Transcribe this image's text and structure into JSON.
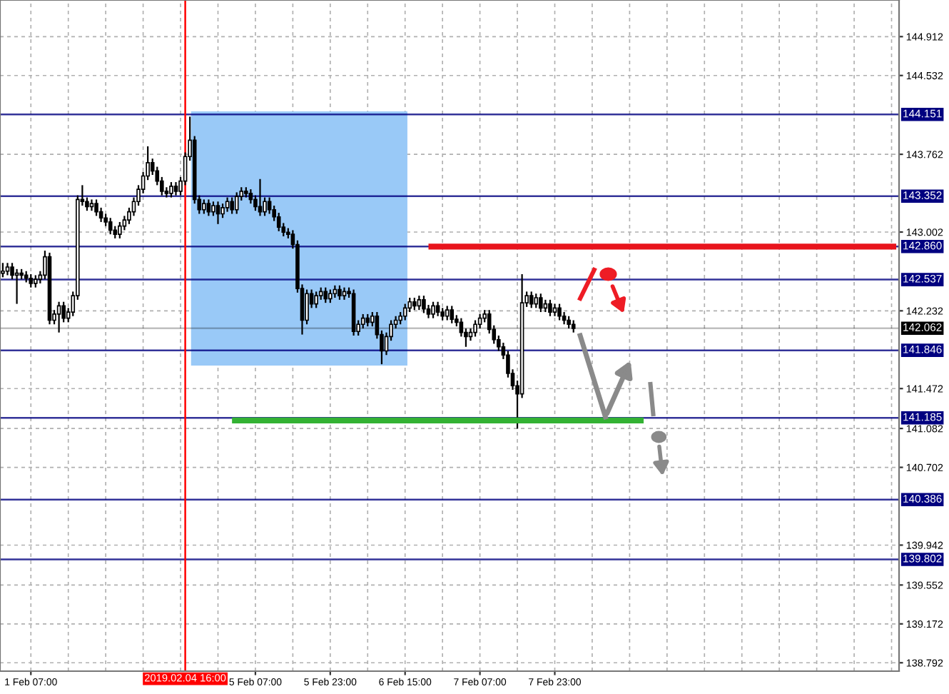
{
  "chart_data": {
    "type": "candlestick",
    "categories": [
      null,
      null,
      null,
      null,
      null,
      null,
      "1 Feb 07:00",
      null,
      null,
      null,
      null,
      null,
      null,
      null,
      null,
      null,
      null,
      null,
      null,
      null,
      null,
      null,
      null,
      null,
      null,
      null,
      null,
      null,
      null,
      null,
      null,
      null,
      null,
      null,
      null,
      null,
      null,
      null,
      null,
      "2019.02.04 16:00",
      null,
      null,
      null,
      null,
      null,
      null,
      null,
      null,
      null,
      null,
      null,
      null,
      null,
      null,
      "5 Feb 07:00",
      null,
      null,
      null,
      null,
      null,
      null,
      null,
      null,
      null,
      null,
      null,
      null,
      null,
      null,
      null,
      "5 Feb 23:00",
      null,
      null,
      null,
      null,
      null,
      null,
      null,
      null,
      null,
      null,
      null,
      null,
      null,
      null,
      null,
      "6 Feb 15:00",
      null,
      null,
      null,
      null,
      null,
      null,
      null,
      null,
      null,
      null,
      null,
      null,
      null,
      null,
      null,
      "7 Feb 07:00",
      null,
      null,
      null,
      null,
      null,
      null,
      null,
      null,
      null,
      null,
      null,
      null,
      null,
      null,
      null,
      "7 Feb 23:00",
      null,
      null,
      null,
      null,
      null,
      null,
      null,
      null,
      null,
      null,
      null,
      null,
      null,
      null,
      null,
      null,
      null,
      null,
      null,
      null,
      null,
      null,
      null,
      null,
      null,
      null,
      null,
      null,
      null,
      null,
      null,
      null,
      null,
      null,
      null,
      null,
      null,
      null,
      null,
      null,
      null,
      null,
      null,
      null,
      null,
      null,
      null,
      null,
      null,
      null,
      null,
      null,
      null,
      null,
      null,
      null,
      null,
      null,
      null,
      null,
      null,
      null,
      null,
      null,
      null,
      null,
      null,
      null,
      null,
      null,
      null,
      null,
      null
    ],
    "ohlc": [
      [
        142.6,
        142.7,
        142.56,
        142.62
      ],
      [
        142.62,
        142.7,
        142.58,
        142.66
      ],
      [
        142.66,
        142.7,
        142.54,
        142.58
      ],
      [
        142.58,
        142.64,
        142.3,
        142.6
      ],
      [
        142.6,
        142.64,
        142.54,
        142.58
      ],
      [
        142.58,
        142.62,
        142.51,
        142.55
      ],
      [
        142.55,
        142.59,
        142.46,
        142.5
      ],
      [
        142.5,
        142.58,
        142.46,
        142.54
      ],
      [
        142.54,
        142.62,
        142.5,
        142.58
      ],
      [
        142.58,
        142.82,
        142.54,
        142.76
      ],
      [
        142.76,
        142.8,
        142.1,
        142.14
      ],
      [
        142.14,
        142.24,
        142.1,
        142.2
      ],
      [
        142.2,
        142.32,
        142.02,
        142.28
      ],
      [
        142.28,
        142.32,
        142.12,
        142.16
      ],
      [
        142.16,
        142.26,
        142.12,
        142.22
      ],
      [
        142.22,
        142.42,
        142.18,
        142.38
      ],
      [
        142.38,
        143.36,
        142.34,
        143.32
      ],
      [
        143.32,
        143.46,
        143.26,
        143.3
      ],
      [
        143.3,
        143.34,
        143.21,
        143.25
      ],
      [
        143.25,
        143.32,
        143.21,
        143.28
      ],
      [
        143.28,
        143.32,
        143.16,
        143.2
      ],
      [
        143.2,
        143.24,
        143.1,
        143.14
      ],
      [
        143.14,
        143.18,
        143.06,
        143.1
      ],
      [
        143.1,
        143.14,
        142.98,
        143.02
      ],
      [
        143.02,
        143.06,
        142.94,
        142.98
      ],
      [
        142.98,
        143.1,
        142.94,
        143.06
      ],
      [
        143.06,
        143.16,
        143.02,
        143.12
      ],
      [
        143.12,
        143.24,
        143.08,
        143.2
      ],
      [
        143.2,
        143.34,
        143.16,
        143.3
      ],
      [
        143.3,
        143.46,
        143.26,
        143.42
      ],
      [
        143.42,
        143.59,
        143.38,
        143.55
      ],
      [
        143.55,
        143.84,
        143.51,
        143.68
      ],
      [
        143.68,
        143.72,
        143.56,
        143.6
      ],
      [
        143.6,
        143.64,
        143.46,
        143.5
      ],
      [
        143.5,
        143.54,
        143.36,
        143.4
      ],
      [
        143.4,
        143.44,
        143.34,
        143.38
      ],
      [
        143.38,
        143.49,
        143.34,
        143.45
      ],
      [
        143.45,
        143.49,
        143.36,
        143.4
      ],
      [
        143.4,
        143.54,
        143.36,
        143.5
      ],
      [
        143.5,
        143.78,
        143.46,
        143.74
      ],
      [
        143.74,
        144.13,
        143.7,
        143.9
      ],
      [
        143.9,
        143.94,
        143.28,
        143.32
      ],
      [
        143.32,
        143.36,
        143.18,
        143.22
      ],
      [
        143.22,
        143.32,
        143.18,
        143.28
      ],
      [
        143.28,
        143.32,
        143.16,
        143.2
      ],
      [
        143.2,
        143.3,
        143.16,
        143.26
      ],
      [
        143.26,
        143.3,
        143.08,
        143.18
      ],
      [
        143.18,
        143.28,
        143.14,
        143.24
      ],
      [
        143.24,
        143.34,
        143.2,
        143.3
      ],
      [
        143.3,
        143.34,
        143.18,
        143.22
      ],
      [
        143.22,
        143.39,
        143.18,
        143.35
      ],
      [
        143.35,
        143.44,
        143.31,
        143.4
      ],
      [
        143.4,
        143.44,
        143.34,
        143.38
      ],
      [
        143.38,
        143.42,
        143.28,
        143.32
      ],
      [
        143.32,
        143.36,
        143.21,
        143.25
      ],
      [
        143.25,
        143.52,
        143.16,
        143.2
      ],
      [
        143.2,
        143.34,
        143.16,
        143.3
      ],
      [
        143.3,
        143.34,
        143.18,
        143.22
      ],
      [
        143.22,
        143.26,
        143.11,
        143.15
      ],
      [
        143.15,
        143.19,
        143.01,
        143.05
      ],
      [
        143.05,
        143.09,
        142.96,
        143.0
      ],
      [
        143.0,
        143.04,
        142.94,
        142.98
      ],
      [
        142.98,
        143.02,
        142.84,
        142.88
      ],
      [
        142.88,
        142.92,
        142.41,
        142.45
      ],
      [
        142.45,
        142.49,
        142.0,
        142.14
      ],
      [
        142.14,
        142.44,
        142.1,
        142.4
      ],
      [
        142.4,
        142.44,
        142.26,
        142.3
      ],
      [
        142.3,
        142.42,
        142.26,
        142.38
      ],
      [
        142.38,
        142.46,
        142.34,
        142.42
      ],
      [
        142.42,
        142.46,
        142.31,
        142.35
      ],
      [
        142.35,
        142.44,
        142.31,
        142.4
      ],
      [
        142.4,
        142.48,
        142.36,
        142.44
      ],
      [
        142.44,
        142.48,
        142.34,
        142.38
      ],
      [
        142.38,
        142.46,
        142.34,
        142.42
      ],
      [
        142.42,
        142.46,
        142.36,
        142.4
      ],
      [
        142.4,
        142.44,
        141.99,
        142.03
      ],
      [
        142.03,
        142.14,
        141.99,
        142.1
      ],
      [
        142.1,
        142.2,
        142.06,
        142.16
      ],
      [
        142.16,
        142.2,
        142.08,
        142.12
      ],
      [
        142.12,
        142.22,
        142.08,
        142.18
      ],
      [
        142.18,
        142.22,
        141.96,
        142.0
      ],
      [
        142.0,
        142.04,
        141.71,
        141.84
      ],
      [
        141.84,
        142.02,
        141.8,
        141.98
      ],
      [
        141.98,
        142.14,
        141.94,
        142.1
      ],
      [
        142.1,
        142.18,
        142.06,
        142.14
      ],
      [
        142.14,
        142.22,
        142.1,
        142.18
      ],
      [
        142.18,
        142.3,
        142.14,
        142.26
      ],
      [
        142.26,
        142.36,
        142.22,
        142.32
      ],
      [
        142.32,
        142.36,
        142.24,
        142.28
      ],
      [
        142.28,
        142.38,
        142.24,
        142.34
      ],
      [
        142.34,
        142.38,
        142.21,
        142.25
      ],
      [
        142.25,
        142.29,
        142.16,
        142.2
      ],
      [
        142.2,
        142.32,
        142.16,
        142.28
      ],
      [
        142.28,
        142.32,
        142.18,
        142.22
      ],
      [
        142.22,
        142.26,
        142.14,
        142.18
      ],
      [
        142.18,
        142.28,
        142.14,
        142.24
      ],
      [
        142.24,
        142.28,
        142.11,
        142.15
      ],
      [
        142.15,
        142.19,
        142.08,
        142.12
      ],
      [
        142.12,
        142.16,
        141.98,
        142.02
      ],
      [
        142.02,
        142.06,
        141.88,
        141.98
      ],
      [
        141.98,
        142.06,
        141.94,
        142.02
      ],
      [
        142.02,
        142.14,
        141.98,
        142.1
      ],
      [
        142.1,
        142.2,
        142.06,
        142.16
      ],
      [
        142.16,
        142.24,
        142.12,
        142.2
      ],
      [
        142.2,
        142.24,
        142.01,
        142.05
      ],
      [
        142.05,
        142.09,
        141.91,
        141.95
      ],
      [
        141.95,
        141.99,
        141.84,
        141.88
      ],
      [
        141.88,
        141.92,
        141.76,
        141.8
      ],
      [
        141.8,
        141.84,
        141.58,
        141.62
      ],
      [
        141.62,
        141.66,
        141.46,
        141.5
      ],
      [
        141.5,
        141.55,
        141.08,
        141.42
      ],
      [
        141.42,
        142.59,
        141.38,
        142.31
      ],
      [
        142.31,
        142.42,
        142.27,
        142.38
      ],
      [
        142.38,
        142.42,
        142.26,
        142.3
      ],
      [
        142.3,
        142.4,
        142.26,
        142.36
      ],
      [
        142.36,
        142.4,
        142.22,
        142.26
      ],
      [
        142.26,
        142.34,
        142.22,
        142.3
      ],
      [
        142.3,
        142.34,
        142.18,
        142.22
      ],
      [
        142.22,
        142.3,
        142.18,
        142.26
      ],
      [
        142.26,
        142.3,
        142.14,
        142.18
      ],
      [
        142.18,
        142.22,
        142.1,
        142.14
      ],
      [
        142.14,
        142.18,
        142.06,
        142.1
      ],
      [
        142.1,
        142.14,
        142.02,
        142.06
      ],
      null,
      null,
      null,
      null,
      null,
      null,
      null,
      null,
      null,
      null,
      null,
      null,
      null,
      null,
      null,
      null,
      null,
      null,
      null,
      null,
      null,
      null,
      null,
      null,
      null,
      null,
      null,
      null,
      null,
      null,
      null,
      null,
      null,
      null,
      null,
      null,
      null,
      null,
      null,
      null,
      null,
      null,
      null,
      null,
      null,
      null,
      null,
      null,
      null,
      null,
      null,
      null,
      null,
      null,
      null,
      null,
      null,
      null,
      null,
      null,
      null,
      null,
      null,
      null,
      null,
      null,
      null,
      null,
      null
    ],
    "color": "#000000",
    "series": [
      {
        "type": "line",
        "color": "#e8141c",
        "values": [
          null,
          null,
          null,
          null,
          null,
          null,
          null,
          null,
          null,
          null,
          null,
          null,
          null,
          null,
          null,
          null,
          null,
          null,
          null,
          null,
          null,
          null,
          null,
          null,
          null,
          null,
          null,
          null,
          null,
          null,
          null,
          null,
          null,
          null,
          null,
          null,
          null,
          null,
          null,
          null,
          null,
          null,
          null,
          null,
          null,
          null,
          null,
          null,
          null,
          null,
          null,
          null,
          null,
          null,
          null,
          null,
          null,
          null,
          null,
          null,
          null,
          null,
          null,
          null,
          null,
          null,
          null,
          null,
          null,
          null,
          null,
          null,
          null,
          null,
          null,
          null,
          null,
          null,
          null,
          null,
          null,
          null,
          null,
          null,
          null,
          null,
          null,
          null,
          null,
          null,
          null,
          142.86,
          142.86,
          142.86,
          142.86,
          142.86,
          142.86,
          142.86,
          142.86,
          142.86,
          142.86,
          142.86,
          142.86,
          142.86,
          142.86,
          142.86,
          142.86,
          142.86,
          142.86,
          142.86,
          142.86,
          142.86,
          142.86,
          142.86,
          142.86,
          142.86,
          142.86,
          142.86,
          142.86,
          142.86,
          142.86,
          142.86,
          142.86,
          142.86,
          142.86,
          142.86,
          142.86,
          142.86,
          142.86,
          142.86,
          142.86,
          142.86,
          142.86,
          142.86,
          142.86,
          142.86,
          142.86,
          142.86,
          142.86,
          142.86,
          142.86,
          142.86,
          142.86,
          142.86,
          142.86,
          142.86,
          142.86,
          142.86,
          142.86,
          142.86,
          142.86,
          142.86,
          142.86,
          142.86,
          142.86,
          142.86,
          142.86,
          142.86,
          142.86,
          142.86,
          142.86,
          142.86,
          142.86,
          142.86,
          142.86,
          142.86,
          142.86,
          142.86,
          142.86,
          142.86,
          142.86,
          142.86,
          142.86,
          142.86,
          142.86,
          142.86,
          142.86,
          142.86,
          142.86,
          142.86,
          142.86,
          142.86,
          142.86,
          142.86,
          142.86,
          142.86,
          142.86,
          142.86,
          142.86,
          142.86,
          142.86,
          142.86
        ]
      },
      {
        "type": "line",
        "color": "#33b233",
        "values": [
          null,
          null,
          null,
          null,
          null,
          null,
          null,
          null,
          null,
          null,
          null,
          null,
          null,
          null,
          null,
          null,
          null,
          null,
          null,
          null,
          null,
          null,
          null,
          null,
          null,
          null,
          null,
          null,
          null,
          null,
          null,
          null,
          null,
          null,
          null,
          null,
          null,
          null,
          null,
          null,
          null,
          null,
          null,
          null,
          null,
          null,
          null,
          null,
          null,
          141.16,
          141.16,
          141.16,
          141.16,
          141.16,
          141.16,
          141.16,
          141.16,
          141.16,
          141.16,
          141.16,
          141.16,
          141.16,
          141.16,
          141.16,
          141.16,
          141.16,
          141.16,
          141.16,
          141.16,
          141.16,
          141.16,
          141.16,
          141.16,
          141.16,
          141.16,
          141.16,
          141.16,
          141.16,
          141.16,
          141.16,
          141.16,
          141.16,
          141.16,
          141.16,
          141.16,
          141.16,
          141.16,
          141.16,
          141.16,
          141.16,
          141.16,
          141.16,
          141.16,
          141.16,
          141.16,
          141.16,
          141.16,
          141.16,
          141.16,
          141.16,
          141.16,
          141.16,
          141.16,
          141.16,
          141.16,
          141.16,
          141.16,
          141.16,
          141.16,
          141.16,
          141.16,
          141.16,
          141.16,
          141.16,
          141.16,
          141.16,
          141.16,
          141.16,
          141.16,
          141.16,
          141.16,
          141.16,
          141.16,
          141.16,
          141.16,
          141.16,
          141.16,
          141.16,
          141.16,
          141.16,
          141.16,
          141.16,
          141.16,
          141.16,
          141.16,
          141.16,
          141.16,
          141.16,
          null,
          null,
          null,
          null,
          null,
          null,
          null,
          null,
          null,
          null,
          null,
          null,
          null,
          null,
          null,
          null,
          null,
          null,
          null,
          null,
          null,
          null,
          null,
          null,
          null,
          null,
          null,
          null,
          null,
          null,
          null,
          null,
          null,
          null,
          null,
          null,
          null,
          null,
          null,
          null,
          null,
          null,
          null,
          null,
          null,
          null,
          null,
          null,
          null,
          null,
          null,
          null,
          null,
          null
        ]
      }
    ],
    "ylim": [
      138.71,
      145.27
    ],
    "yticks": [
      138.792,
      139.172,
      139.552,
      139.942,
      140.702,
      141.082,
      141.472,
      142.232,
      143.002,
      143.762,
      144.532,
      144.912
    ],
    "grid": true,
    "ref_lines": [
      {
        "axis": "y",
        "value": 144.151,
        "label": "144.151",
        "color": "#000080"
      },
      {
        "axis": "y",
        "value": 143.352,
        "label": "143.352",
        "color": "#000080"
      },
      {
        "axis": "y",
        "value": 142.86,
        "label": "142.860",
        "color": "#000080"
      },
      {
        "axis": "y",
        "value": 142.537,
        "label": "142.537",
        "color": "#000080"
      },
      {
        "axis": "y",
        "value": 142.062,
        "label": "142.062",
        "color": "#000000"
      },
      {
        "axis": "y",
        "value": 141.846,
        "label": "141.846",
        "color": "#000080"
      },
      {
        "axis": "y",
        "value": 141.185,
        "label": "141.185",
        "color": "#000080"
      },
      {
        "axis": "y",
        "value": 140.386,
        "label": "140.386",
        "color": "#000080"
      },
      {
        "axis": "y",
        "value": 139.802,
        "label": "139.802",
        "color": "#000080"
      },
      {
        "axis": "x",
        "value": "2019.02.04 16:00",
        "color": "#ff0000"
      }
    ]
  }
}
